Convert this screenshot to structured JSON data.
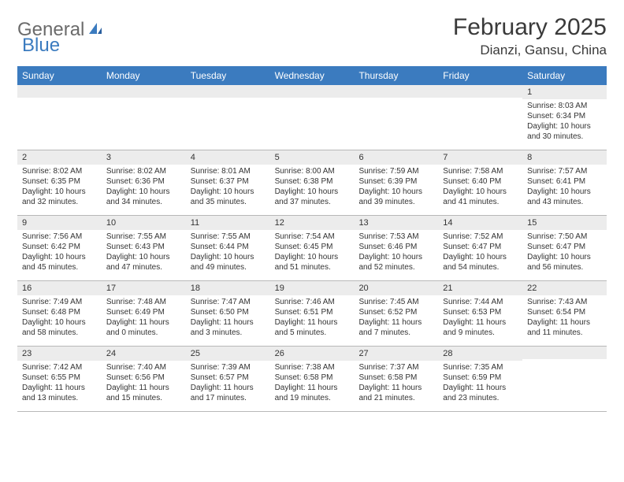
{
  "logo": {
    "text1": "General",
    "text2": "Blue"
  },
  "title": "February 2025",
  "location": "Dianzi, Gansu, China",
  "colors": {
    "header_bg": "#3b7bbf",
    "header_text": "#ffffff",
    "daynum_bg": "#ececec",
    "text": "#333333",
    "border": "#b8b8b8",
    "logo_gray": "#6b6b6b",
    "logo_blue": "#3b7bbf"
  },
  "day_names": [
    "Sunday",
    "Monday",
    "Tuesday",
    "Wednesday",
    "Thursday",
    "Friday",
    "Saturday"
  ],
  "weeks": [
    [
      {
        "n": "",
        "sr": "",
        "ss": "",
        "dl": ""
      },
      {
        "n": "",
        "sr": "",
        "ss": "",
        "dl": ""
      },
      {
        "n": "",
        "sr": "",
        "ss": "",
        "dl": ""
      },
      {
        "n": "",
        "sr": "",
        "ss": "",
        "dl": ""
      },
      {
        "n": "",
        "sr": "",
        "ss": "",
        "dl": ""
      },
      {
        "n": "",
        "sr": "",
        "ss": "",
        "dl": ""
      },
      {
        "n": "1",
        "sr": "Sunrise: 8:03 AM",
        "ss": "Sunset: 6:34 PM",
        "dl": "Daylight: 10 hours and 30 minutes."
      }
    ],
    [
      {
        "n": "2",
        "sr": "Sunrise: 8:02 AM",
        "ss": "Sunset: 6:35 PM",
        "dl": "Daylight: 10 hours and 32 minutes."
      },
      {
        "n": "3",
        "sr": "Sunrise: 8:02 AM",
        "ss": "Sunset: 6:36 PM",
        "dl": "Daylight: 10 hours and 34 minutes."
      },
      {
        "n": "4",
        "sr": "Sunrise: 8:01 AM",
        "ss": "Sunset: 6:37 PM",
        "dl": "Daylight: 10 hours and 35 minutes."
      },
      {
        "n": "5",
        "sr": "Sunrise: 8:00 AM",
        "ss": "Sunset: 6:38 PM",
        "dl": "Daylight: 10 hours and 37 minutes."
      },
      {
        "n": "6",
        "sr": "Sunrise: 7:59 AM",
        "ss": "Sunset: 6:39 PM",
        "dl": "Daylight: 10 hours and 39 minutes."
      },
      {
        "n": "7",
        "sr": "Sunrise: 7:58 AM",
        "ss": "Sunset: 6:40 PM",
        "dl": "Daylight: 10 hours and 41 minutes."
      },
      {
        "n": "8",
        "sr": "Sunrise: 7:57 AM",
        "ss": "Sunset: 6:41 PM",
        "dl": "Daylight: 10 hours and 43 minutes."
      }
    ],
    [
      {
        "n": "9",
        "sr": "Sunrise: 7:56 AM",
        "ss": "Sunset: 6:42 PM",
        "dl": "Daylight: 10 hours and 45 minutes."
      },
      {
        "n": "10",
        "sr": "Sunrise: 7:55 AM",
        "ss": "Sunset: 6:43 PM",
        "dl": "Daylight: 10 hours and 47 minutes."
      },
      {
        "n": "11",
        "sr": "Sunrise: 7:55 AM",
        "ss": "Sunset: 6:44 PM",
        "dl": "Daylight: 10 hours and 49 minutes."
      },
      {
        "n": "12",
        "sr": "Sunrise: 7:54 AM",
        "ss": "Sunset: 6:45 PM",
        "dl": "Daylight: 10 hours and 51 minutes."
      },
      {
        "n": "13",
        "sr": "Sunrise: 7:53 AM",
        "ss": "Sunset: 6:46 PM",
        "dl": "Daylight: 10 hours and 52 minutes."
      },
      {
        "n": "14",
        "sr": "Sunrise: 7:52 AM",
        "ss": "Sunset: 6:47 PM",
        "dl": "Daylight: 10 hours and 54 minutes."
      },
      {
        "n": "15",
        "sr": "Sunrise: 7:50 AM",
        "ss": "Sunset: 6:47 PM",
        "dl": "Daylight: 10 hours and 56 minutes."
      }
    ],
    [
      {
        "n": "16",
        "sr": "Sunrise: 7:49 AM",
        "ss": "Sunset: 6:48 PM",
        "dl": "Daylight: 10 hours and 58 minutes."
      },
      {
        "n": "17",
        "sr": "Sunrise: 7:48 AM",
        "ss": "Sunset: 6:49 PM",
        "dl": "Daylight: 11 hours and 0 minutes."
      },
      {
        "n": "18",
        "sr": "Sunrise: 7:47 AM",
        "ss": "Sunset: 6:50 PM",
        "dl": "Daylight: 11 hours and 3 minutes."
      },
      {
        "n": "19",
        "sr": "Sunrise: 7:46 AM",
        "ss": "Sunset: 6:51 PM",
        "dl": "Daylight: 11 hours and 5 minutes."
      },
      {
        "n": "20",
        "sr": "Sunrise: 7:45 AM",
        "ss": "Sunset: 6:52 PM",
        "dl": "Daylight: 11 hours and 7 minutes."
      },
      {
        "n": "21",
        "sr": "Sunrise: 7:44 AM",
        "ss": "Sunset: 6:53 PM",
        "dl": "Daylight: 11 hours and 9 minutes."
      },
      {
        "n": "22",
        "sr": "Sunrise: 7:43 AM",
        "ss": "Sunset: 6:54 PM",
        "dl": "Daylight: 11 hours and 11 minutes."
      }
    ],
    [
      {
        "n": "23",
        "sr": "Sunrise: 7:42 AM",
        "ss": "Sunset: 6:55 PM",
        "dl": "Daylight: 11 hours and 13 minutes."
      },
      {
        "n": "24",
        "sr": "Sunrise: 7:40 AM",
        "ss": "Sunset: 6:56 PM",
        "dl": "Daylight: 11 hours and 15 minutes."
      },
      {
        "n": "25",
        "sr": "Sunrise: 7:39 AM",
        "ss": "Sunset: 6:57 PM",
        "dl": "Daylight: 11 hours and 17 minutes."
      },
      {
        "n": "26",
        "sr": "Sunrise: 7:38 AM",
        "ss": "Sunset: 6:58 PM",
        "dl": "Daylight: 11 hours and 19 minutes."
      },
      {
        "n": "27",
        "sr": "Sunrise: 7:37 AM",
        "ss": "Sunset: 6:58 PM",
        "dl": "Daylight: 11 hours and 21 minutes."
      },
      {
        "n": "28",
        "sr": "Sunrise: 7:35 AM",
        "ss": "Sunset: 6:59 PM",
        "dl": "Daylight: 11 hours and 23 minutes."
      },
      {
        "n": "",
        "sr": "",
        "ss": "",
        "dl": ""
      }
    ]
  ]
}
